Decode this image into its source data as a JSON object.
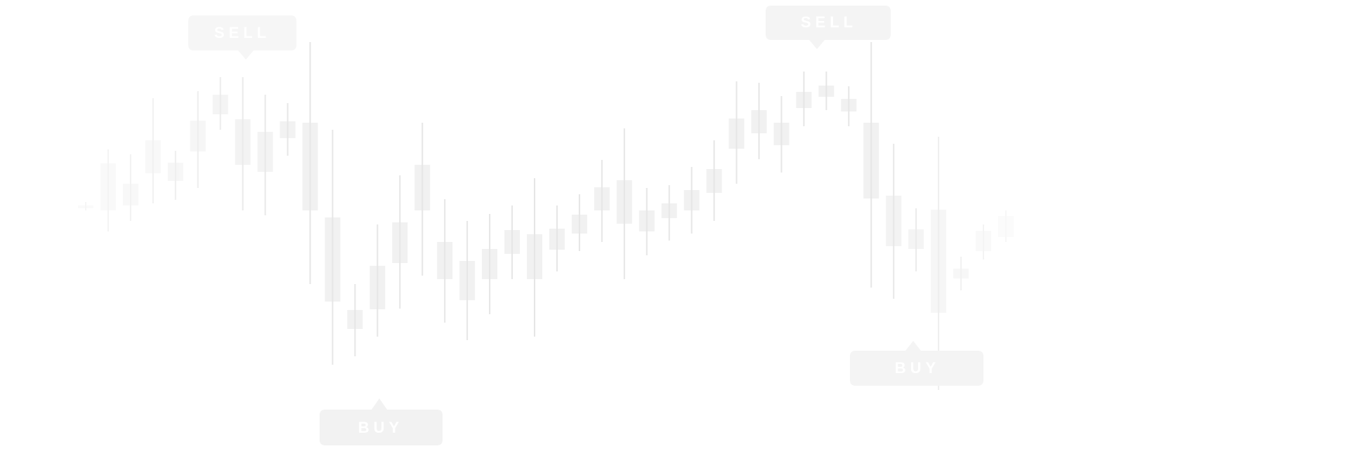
{
  "chart_data": {
    "type": "candlestick",
    "open": [
      366,
      363,
      370,
      416,
      405,
      447,
      500,
      428,
      418,
      466,
      363,
      233,
      194,
      222,
      288,
      363,
      265,
      235,
      265,
      301,
      265,
      307,
      330,
      363,
      344,
      333,
      352,
      363,
      388,
      451,
      473,
      456,
      509,
      525,
      504,
      380,
      312,
      308,
      217,
      266,
      305,
      325
    ],
    "high": [
      375,
      450,
      443,
      523,
      448,
      533,
      553,
      553,
      528,
      516,
      603,
      478,
      258,
      343,
      413,
      488,
      379,
      348,
      358,
      370,
      409,
      370,
      386,
      435,
      480,
      395,
      399,
      425,
      463,
      547,
      545,
      526,
      561,
      561,
      540,
      603,
      458,
      366,
      468,
      297,
      343,
      363
    ],
    "low": [
      363,
      333,
      348,
      373,
      378,
      395,
      478,
      363,
      356,
      441,
      258,
      143,
      155,
      183,
      223,
      270,
      203,
      178,
      215,
      265,
      183,
      276,
      305,
      318,
      265,
      299,
      320,
      330,
      348,
      401,
      436,
      417,
      483,
      506,
      483,
      253,
      237,
      276,
      107,
      249,
      293,
      318
    ],
    "close": [
      370,
      430,
      401,
      463,
      431,
      491,
      528,
      493,
      475,
      490,
      488,
      353,
      221,
      284,
      346,
      428,
      318,
      291,
      308,
      335,
      329,
      337,
      357,
      396,
      406,
      363,
      373,
      392,
      422,
      494,
      506,
      488,
      532,
      541,
      522,
      488,
      384,
      336,
      364,
      280,
      334,
      355
    ],
    "ylim": [
      0,
      663
    ],
    "color": "#e6e6e6",
    "annotations": [
      {
        "text": "SELL"
      },
      {
        "text": "BUY"
      },
      {
        "text": "SELL"
      },
      {
        "text": "BUY"
      }
    ]
  }
}
